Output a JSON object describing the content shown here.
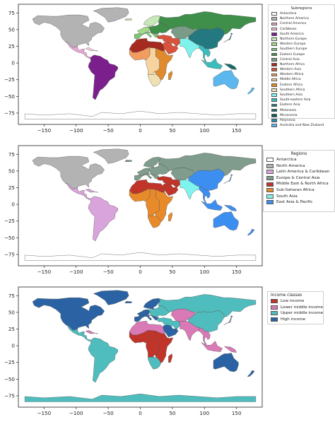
{
  "axes": {
    "lon_range": [
      -190,
      190
    ],
    "lat_range": [
      -92,
      88
    ],
    "x_ticks": [
      -150,
      -100,
      -50,
      0,
      50,
      100,
      150
    ],
    "x_tick_labels": [
      "−150",
      "−100",
      "−50",
      "0",
      "50",
      "100",
      "150"
    ],
    "y_ticks": [
      75,
      50,
      25,
      0,
      -25,
      -50,
      -75
    ],
    "y_tick_labels": [
      "75",
      "50",
      "25",
      "0",
      "−25",
      "−50",
      "−75"
    ]
  },
  "panels": [
    {
      "id": "subregions",
      "legend_title": "Subregions",
      "legend_items": [
        {
          "label": "Antarctica",
          "color": "#ffffff"
        },
        {
          "label": "Northern America",
          "color": "#b3b3b3"
        },
        {
          "label": "Central America",
          "color": "#e8a6d6"
        },
        {
          "label": "Caribbean",
          "color": "#f7cde4"
        },
        {
          "label": "South America",
          "color": "#7a1f8b"
        },
        {
          "label": "Northern Europe",
          "color": "#c9e8b8"
        },
        {
          "label": "Western Europe",
          "color": "#a4d98b"
        },
        {
          "label": "Southern Europe",
          "color": "#7cc576"
        },
        {
          "label": "Eastern Europe",
          "color": "#3f8f4a"
        },
        {
          "label": "Central Asia",
          "color": "#7a9c86"
        },
        {
          "label": "Northern Africa",
          "color": "#a52a1f"
        },
        {
          "label": "Western Asia",
          "color": "#d9533c"
        },
        {
          "label": "Western Africa",
          "color": "#f29c62"
        },
        {
          "label": "Middle Africa",
          "color": "#f7d39f"
        },
        {
          "label": "Eastern Africa",
          "color": "#e08a2e"
        },
        {
          "label": "Southern Africa",
          "color": "#efe0b4"
        },
        {
          "label": "Southern Asia",
          "color": "#7ff2ec"
        },
        {
          "label": "South-eastern Asia",
          "color": "#3bbdbd"
        },
        {
          "label": "Eastern Asia",
          "color": "#24787f"
        },
        {
          "label": "Melanesia",
          "color": "#1a6a6a"
        },
        {
          "label": "Micronesia",
          "color": "#0f5e5c"
        },
        {
          "label": "Polynesia",
          "color": "#2c8caa"
        },
        {
          "label": "Australia and New Zealand",
          "color": "#5cb7ef"
        }
      ],
      "regions": {
        "antarctica": "#ffffff",
        "greenland": "#b3b3b3",
        "north_america": "#b3b3b3",
        "central_america": "#e8a6d6",
        "caribbean": "#f7cde4",
        "south_america": "#7a1f8b",
        "iceland": "#c9e8b8",
        "northern_europe": "#c9e8b8",
        "western_europe": "#a4d98b",
        "southern_europe": "#7cc576",
        "eastern_europe": "#3f8f4a",
        "russia": "#3f8f4a",
        "central_asia": "#7a9c86",
        "northern_africa": "#a52a1f",
        "western_asia": "#d9533c",
        "arabia": "#d9533c",
        "western_africa": "#f29c62",
        "middle_africa": "#f7d39f",
        "eastern_africa": "#e08a2e",
        "southern_africa": "#efe0b4",
        "madagascar": "#e08a2e",
        "southern_asia": "#7ff2ec",
        "eastern_asia": "#24787f",
        "japan": "#24787f",
        "southeast_asia": "#3bbdbd",
        "indonesia": "#3bbdbd",
        "australia": "#5cb7ef",
        "new_zealand": "#5cb7ef",
        "new_guinea": "#1a6a6a"
      }
    },
    {
      "id": "regions",
      "legend_title": "Regions",
      "legend_items": [
        {
          "label": "Antarctica",
          "color": "#ffffff"
        },
        {
          "label": "North America",
          "color": "#b3b3b3"
        },
        {
          "label": "Latin America & Caribbean",
          "color": "#d9a3dc"
        },
        {
          "label": "Europe & Central Asia",
          "color": "#7f9c8c"
        },
        {
          "label": "Middle East & North Africa",
          "color": "#c0342a"
        },
        {
          "label": "Sub-Saharan Africa",
          "color": "#e88a2a"
        },
        {
          "label": "South Asia",
          "color": "#7ff4ee"
        },
        {
          "label": "East Asia & Pacific",
          "color": "#3c8ff0"
        }
      ],
      "regions": {
        "antarctica": "#ffffff",
        "greenland": "#b3b3b3",
        "north_america": "#b3b3b3",
        "central_america": "#d9a3dc",
        "caribbean": "#d9a3dc",
        "south_america": "#d9a3dc",
        "iceland": "#7f9c8c",
        "northern_europe": "#7f9c8c",
        "western_europe": "#7f9c8c",
        "southern_europe": "#7f9c8c",
        "eastern_europe": "#7f9c8c",
        "russia": "#7f9c8c",
        "central_asia": "#7f9c8c",
        "northern_africa": "#c0342a",
        "western_asia": "#c0342a",
        "arabia": "#c0342a",
        "western_africa": "#e88a2a",
        "middle_africa": "#e88a2a",
        "eastern_africa": "#e88a2a",
        "southern_africa": "#e88a2a",
        "madagascar": "#e88a2a",
        "southern_asia": "#7ff4ee",
        "eastern_asia": "#3c8ff0",
        "japan": "#3c8ff0",
        "southeast_asia": "#3c8ff0",
        "indonesia": "#3c8ff0",
        "australia": "#3c8ff0",
        "new_zealand": "#3c8ff0",
        "new_guinea": "#3c8ff0"
      }
    },
    {
      "id": "income",
      "legend_title": "Income classes",
      "legend_items": [
        {
          "label": "Low income",
          "color": "#c0342a"
        },
        {
          "label": "Lower middle income",
          "color": "#d979b6"
        },
        {
          "label": "Upper middle income",
          "color": "#4fbdbd"
        },
        {
          "label": "High income",
          "color": "#2b62a3"
        }
      ],
      "regions": {
        "antarctica": "#4fbdbd",
        "greenland": "#2b62a3",
        "north_america": "#2b62a3",
        "central_america": "#4fbdbd",
        "caribbean": "#d979b6",
        "south_america": "#4fbdbd",
        "iceland": "#2b62a3",
        "northern_europe": "#2b62a3",
        "western_europe": "#2b62a3",
        "southern_europe": "#2b62a3",
        "eastern_europe": "#4fbdbd",
        "russia": "#4fbdbd",
        "central_asia": "#d979b6",
        "northern_africa": "#d979b6",
        "western_asia": "#4fbdbd",
        "arabia": "#2b62a3",
        "western_africa": "#c0342a",
        "middle_africa": "#c0342a",
        "eastern_africa": "#c0342a",
        "southern_africa": "#4fbdbd",
        "madagascar": "#c0342a",
        "southern_asia": "#d979b6",
        "eastern_asia": "#4fbdbd",
        "japan": "#2b62a3",
        "southeast_asia": "#d979b6",
        "indonesia": "#d979b6",
        "australia": "#2b62a3",
        "new_zealand": "#2b62a3",
        "new_guinea": "#d979b6"
      }
    }
  ]
}
